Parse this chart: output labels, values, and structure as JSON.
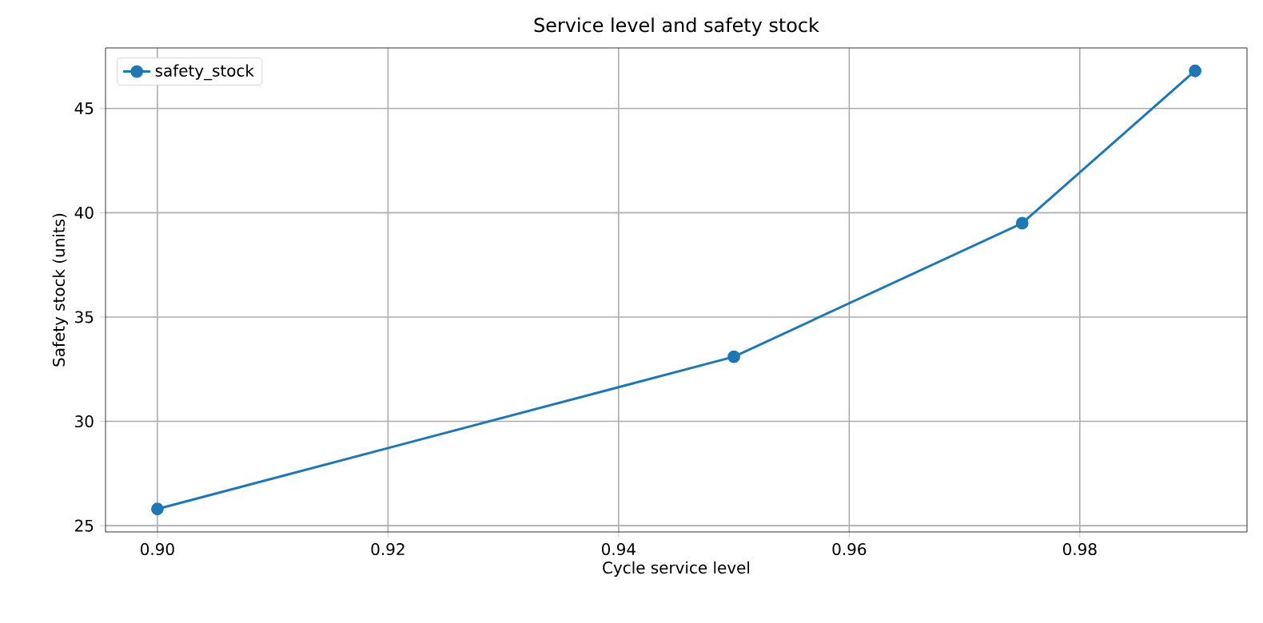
{
  "chart_data": {
    "type": "line",
    "title": "Service level and safety stock",
    "xlabel": "Cycle service level",
    "ylabel": "Safety stock (units)",
    "x": [
      0.9,
      0.95,
      0.975,
      0.99
    ],
    "series": [
      {
        "name": "safety_stock",
        "color": "#1f77b4",
        "values": [
          25.8,
          33.1,
          39.5,
          46.8
        ]
      }
    ],
    "xlim": [
      0.8955,
      0.9945
    ],
    "ylim": [
      24.7,
      47.9
    ],
    "xticks": [
      {
        "value": 0.9,
        "label": "0.90"
      },
      {
        "value": 0.92,
        "label": "0.92"
      },
      {
        "value": 0.94,
        "label": "0.94"
      },
      {
        "value": 0.96,
        "label": "0.96"
      },
      {
        "value": 0.98,
        "label": "0.98"
      }
    ],
    "yticks": [
      25,
      30,
      35,
      40,
      45
    ],
    "grid": true,
    "legend": "top left",
    "marker": "circle",
    "line_style": "solid"
  }
}
